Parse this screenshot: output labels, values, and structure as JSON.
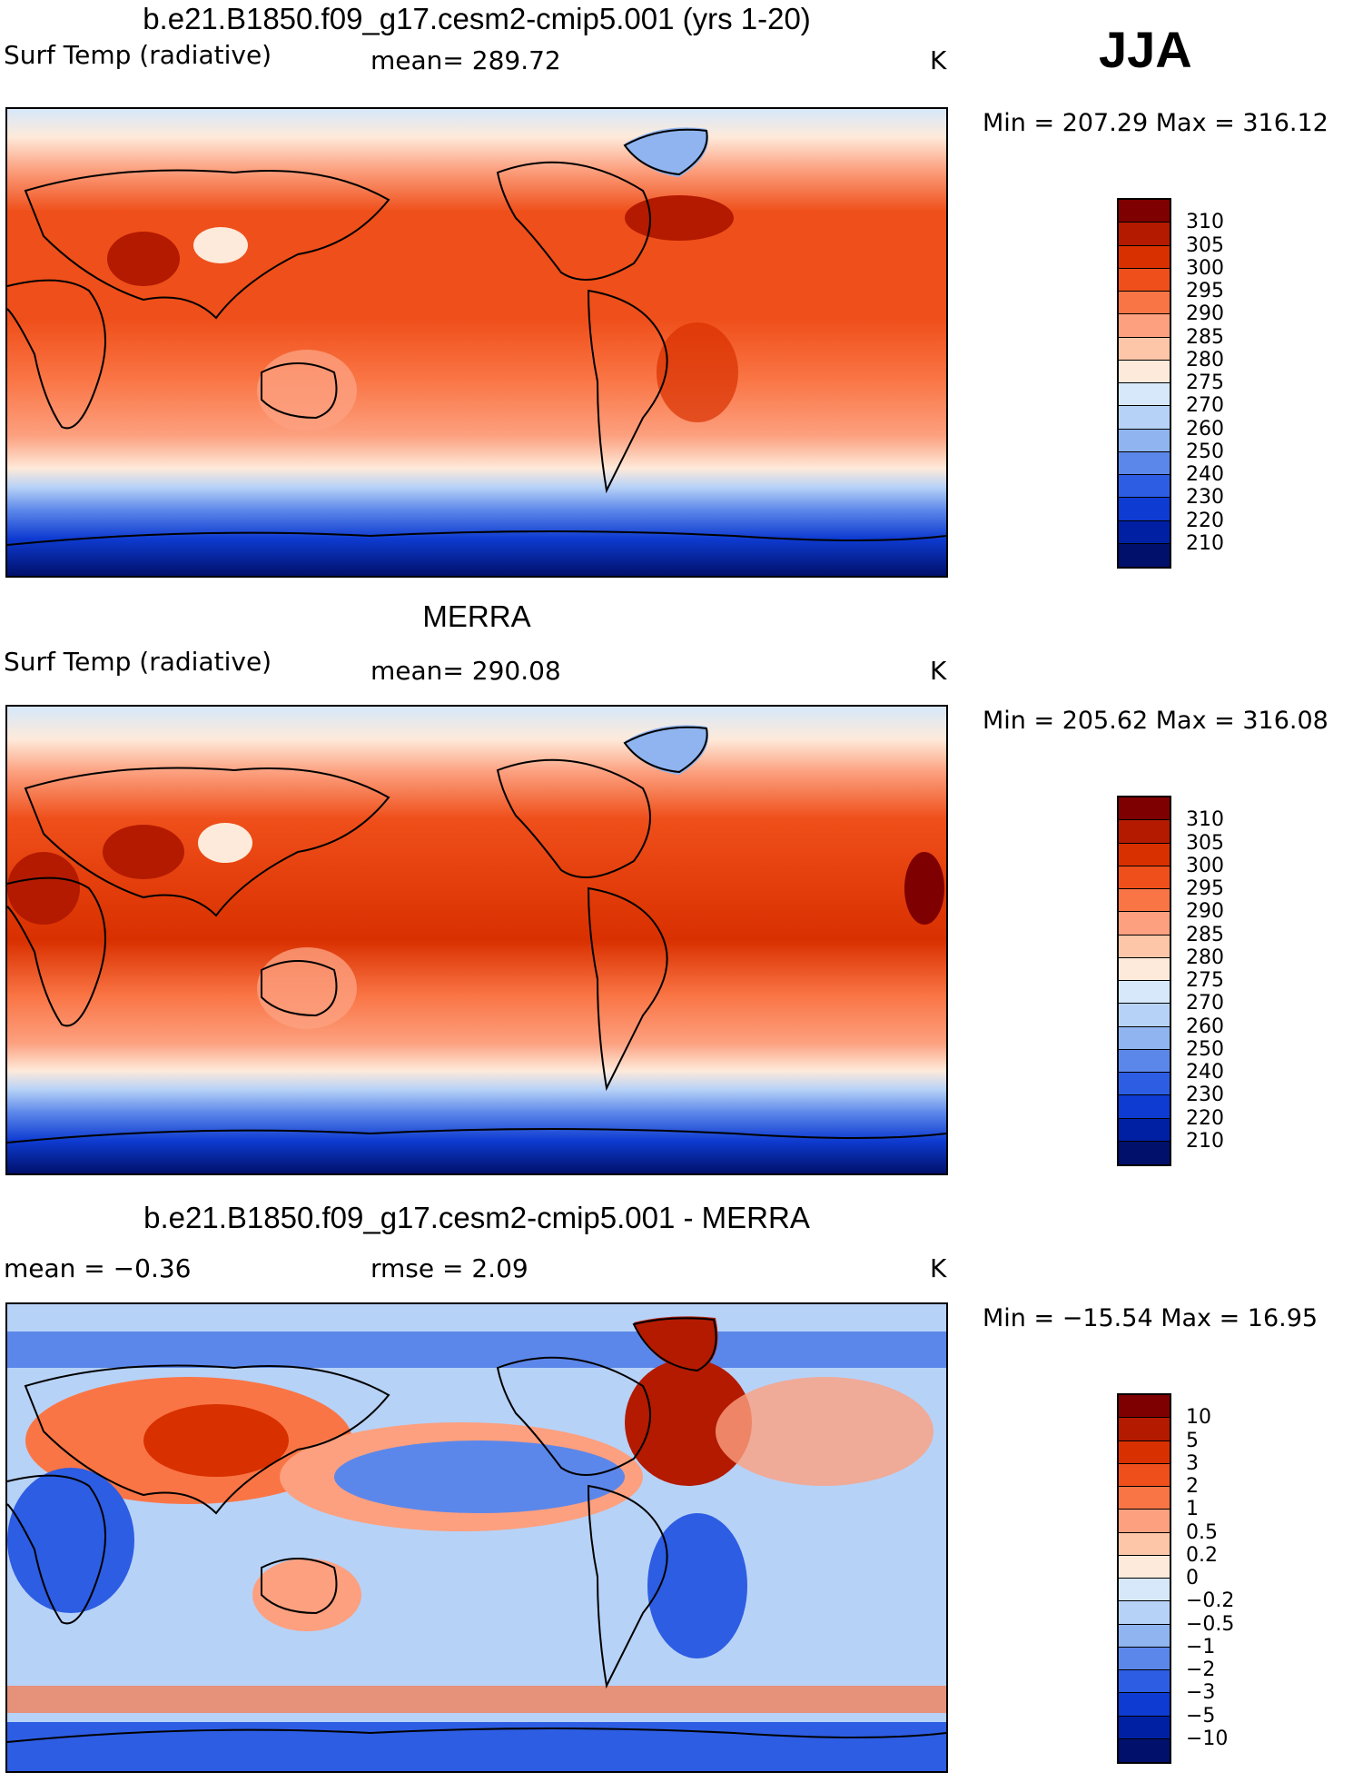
{
  "season": "JJA",
  "unit": "K",
  "palette_abs": [
    "#7f0000",
    "#b31a00",
    "#d93000",
    "#ef4f1a",
    "#fa7545",
    "#fca07f",
    "#fdc6a8",
    "#feeada",
    "#d6e8fa",
    "#b7d2f7",
    "#8fb4f0",
    "#5c87ea",
    "#2d5de3",
    "#0e3bd1",
    "#0020a3",
    "#00106b"
  ],
  "palette_diff": [
    "#7f0000",
    "#b31a00",
    "#d93000",
    "#ef4f1a",
    "#fa7545",
    "#fca07f",
    "#fdc6a8",
    "#feeada",
    "#d6e8fa",
    "#b7d2f7",
    "#8fb4f0",
    "#5c87ea",
    "#2d5de3",
    "#0e3bd1",
    "#0020a3",
    "#00106b"
  ],
  "panels": [
    {
      "title": "b.e21.B1850.f09_g17.cesm2-cmip5.001 (yrs 1-20)",
      "left_label": "Surf Temp (radiative)",
      "mean_text": "mean= 289.72",
      "rmse_text": "",
      "unit": "K",
      "minmax": "Min = 207.29 Max = 316.12",
      "colorbar_labels": [
        "310",
        "305",
        "300",
        "295",
        "290",
        "285",
        "280",
        "275",
        "270",
        "260",
        "250",
        "240",
        "230",
        "220",
        "210"
      ]
    },
    {
      "title": "MERRA",
      "left_label": "Surf Temp (radiative)",
      "mean_text": "mean= 290.08",
      "rmse_text": "",
      "unit": "K",
      "minmax": "Min = 205.62 Max = 316.08",
      "colorbar_labels": [
        "310",
        "305",
        "300",
        "295",
        "290",
        "285",
        "280",
        "275",
        "270",
        "260",
        "250",
        "240",
        "230",
        "220",
        "210"
      ]
    },
    {
      "title": "b.e21.B1850.f09_g17.cesm2-cmip5.001 - MERRA",
      "left_label": "mean =   −0.36",
      "mean_text": "rmse =    2.09",
      "rmse_text": "",
      "unit": "K",
      "minmax": "Min = −15.54 Max =   16.95",
      "colorbar_labels": [
        "10",
        "5",
        "3",
        "2",
        "1",
        "0.5",
        "0.2",
        "0",
        "−0.2",
        "−0.5",
        "−1",
        "−2",
        "−3",
        "−5",
        "−10"
      ]
    }
  ]
}
